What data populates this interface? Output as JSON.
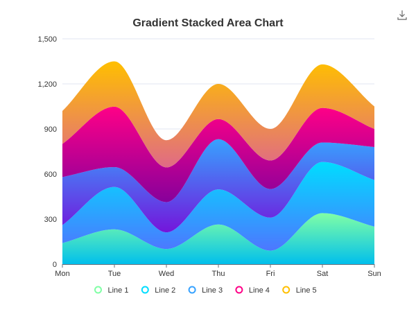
{
  "toolbox": {
    "download_icon": "download-icon"
  },
  "chart_data": {
    "type": "area",
    "stacked": true,
    "smooth": true,
    "title": "Gradient Stacked Area Chart",
    "xlabel": "",
    "ylabel": "",
    "categories": [
      "Mon",
      "Tue",
      "Wed",
      "Thu",
      "Fri",
      "Sat",
      "Sun"
    ],
    "ylim": [
      0,
      1500
    ],
    "yticks": [
      "0",
      "300",
      "600",
      "900",
      "1,200",
      "1,500"
    ],
    "ytick_values": [
      0,
      300,
      600,
      900,
      1200,
      1500
    ],
    "grid": true,
    "legend_position": "bottom",
    "series": [
      {
        "name": "Line 1",
        "values": [
          140,
          232,
          101,
          264,
          90,
          340,
          250
        ],
        "color": "#80FFA5",
        "gradient": [
          "#80FFA5",
          "#01BFEC"
        ]
      },
      {
        "name": "Line 2",
        "values": [
          120,
          282,
          111,
          234,
          220,
          340,
          310
        ],
        "color": "#00DDFF",
        "gradient": [
          "#00DDFF",
          "#4D77FF"
        ]
      },
      {
        "name": "Line 3",
        "values": [
          320,
          132,
          201,
          334,
          190,
          130,
          220
        ],
        "color": "#37A2FF",
        "gradient": [
          "#37A2FF",
          "#7415DB"
        ]
      },
      {
        "name": "Line 4",
        "values": [
          220,
          402,
          231,
          134,
          190,
          230,
          120
        ],
        "color": "#FF0087",
        "gradient": [
          "#FF0087",
          "#87009B"
        ]
      },
      {
        "name": "Line 5",
        "values": [
          220,
          302,
          181,
          234,
          210,
          290,
          150
        ],
        "color": "#FFBF00",
        "gradient": [
          "#FFBF00",
          "#E06A86"
        ]
      }
    ]
  }
}
